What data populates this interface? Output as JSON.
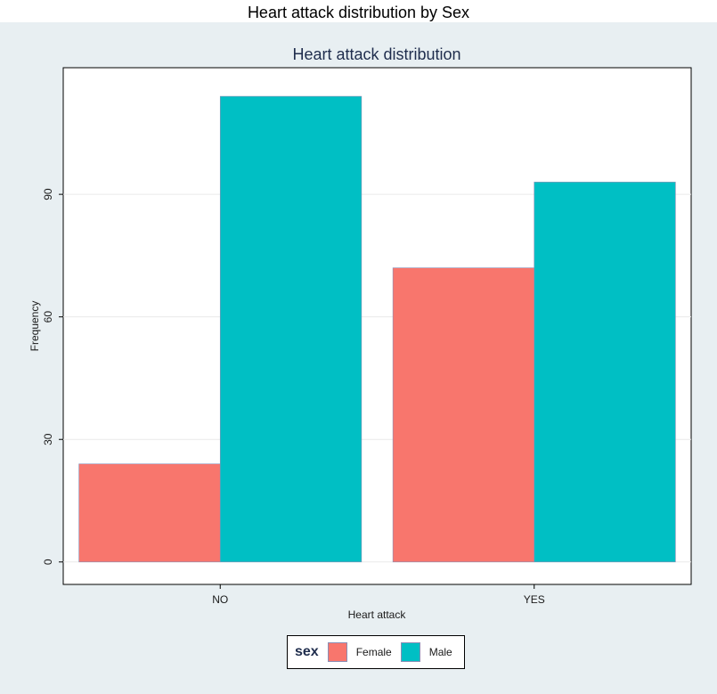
{
  "chart_data": {
    "type": "bar",
    "outer_title": "Heart attack distribution by Sex",
    "title": "Heart attack distribution",
    "xlabel": "Heart attack",
    "ylabel": "Frequency",
    "categories": [
      "NO",
      "YES"
    ],
    "series": [
      {
        "name": "Female",
        "color": "#f8766d",
        "values": [
          24,
          72
        ]
      },
      {
        "name": "Male",
        "color": "#00bfc4",
        "values": [
          114,
          93
        ]
      }
    ],
    "yticks": [
      0,
      30,
      60,
      90
    ],
    "ylim": [
      -5.5,
      121
    ],
    "grid": true,
    "legend_title": "sex",
    "legend_position": "bottom"
  }
}
